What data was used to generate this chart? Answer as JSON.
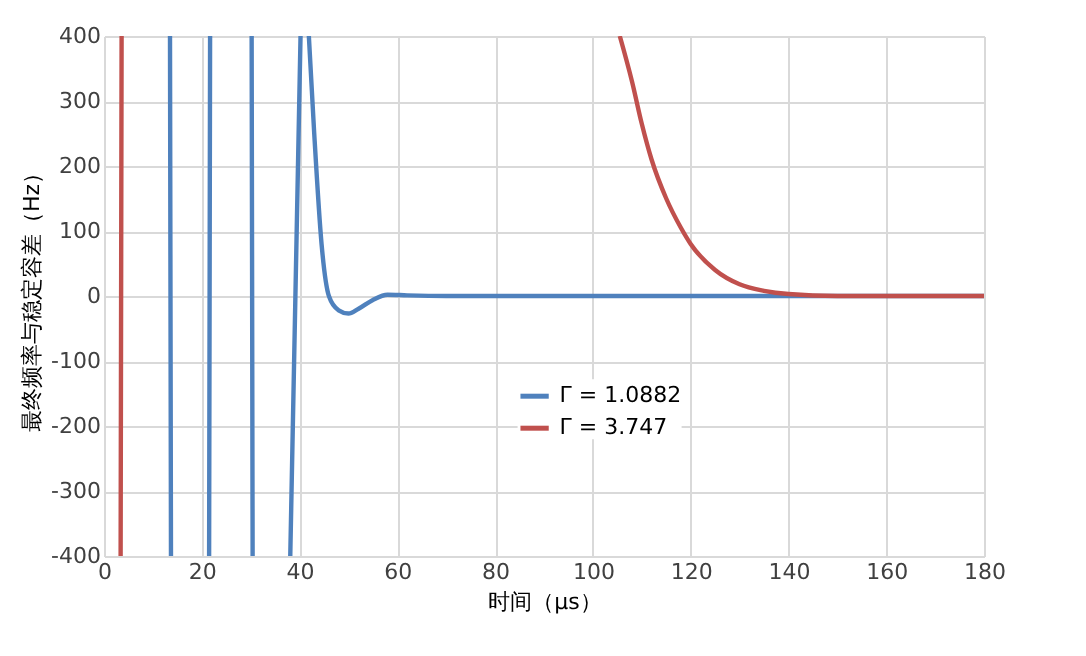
{
  "chart_data": {
    "type": "line",
    "xlabel": "时间（μs）",
    "ylabel": "最终频率与稳定容差（Hz）",
    "xlim": [
      0,
      180
    ],
    "xticks": [
      0,
      20,
      40,
      60,
      80,
      100,
      120,
      140,
      160,
      180
    ],
    "ylim": [
      -400,
      400
    ],
    "yticks": [
      -400,
      -300,
      -200,
      -100,
      0,
      100,
      200,
      300,
      400
    ],
    "grid": true,
    "legend": "center",
    "line_style": "solid",
    "series": [
      {
        "name": "Γ = 1.0882",
        "color": "#4f81bd",
        "x": [
          13.5,
          13.7,
          17,
          21.5,
          21.7,
          26,
          30.2,
          30.4,
          34,
          38.1,
          40.2,
          41,
          41.9,
          43,
          44.5,
          46,
          48,
          50,
          52,
          55,
          58,
          62,
          70,
          100,
          180
        ],
        "values": [
          400,
          -400,
          null,
          -400,
          400,
          null,
          400,
          -400,
          null,
          -400,
          400,
          null,
          400,
          250,
          80,
          0,
          -22,
          -27,
          -20,
          -6,
          2,
          1,
          0,
          0,
          0
        ]
      },
      {
        "name": "Γ = 3.747",
        "color": "#c0504d",
        "x": [
          3.4,
          3.6,
          50,
          105.5,
          108,
          110,
          112,
          115,
          118,
          120,
          125,
          130,
          135,
          140,
          150,
          160,
          180
        ],
        "values": [
          -400,
          400,
          null,
          400,
          330,
          265,
          210,
          150,
          105,
          80,
          40,
          18,
          8,
          3,
          0,
          0,
          0
        ]
      }
    ]
  }
}
